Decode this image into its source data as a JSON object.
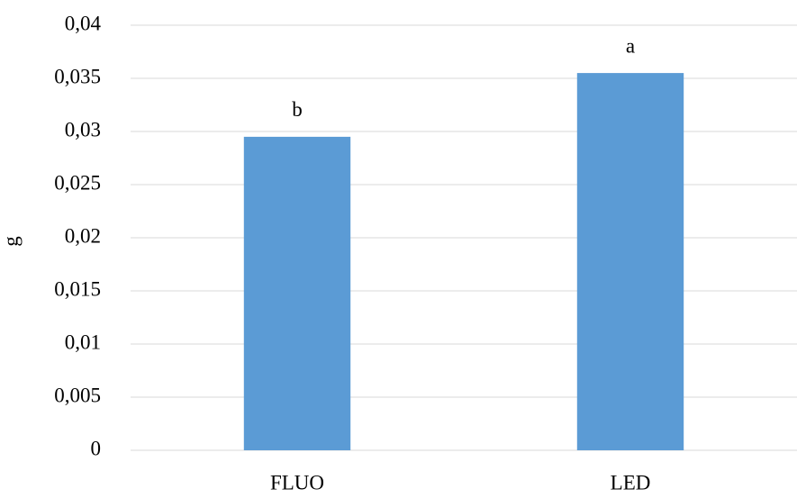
{
  "chart_data": {
    "type": "bar",
    "y_label": "g",
    "categories": [
      "FLUO",
      "LED"
    ],
    "values": [
      0.0295,
      0.0355
    ],
    "annotations": [
      "b",
      "a"
    ],
    "color": "#5b9bd5",
    "ylim": [
      0,
      0.04
    ],
    "yticks": [
      0,
      {
        "value": 0.005,
        "label": "0,005"
      },
      {
        "value": 0.01,
        "label": "0,01"
      },
      {
        "value": 0.015,
        "label": "0,015"
      },
      {
        "value": 0.02,
        "label": "0,02"
      },
      {
        "value": 0.025,
        "label": "0,025"
      },
      {
        "value": 0.03,
        "label": "0,03"
      },
      {
        "value": 0.035,
        "label": "0,035"
      },
      {
        "value": 0.04,
        "label": "0,04"
      }
    ],
    "grid": true
  }
}
